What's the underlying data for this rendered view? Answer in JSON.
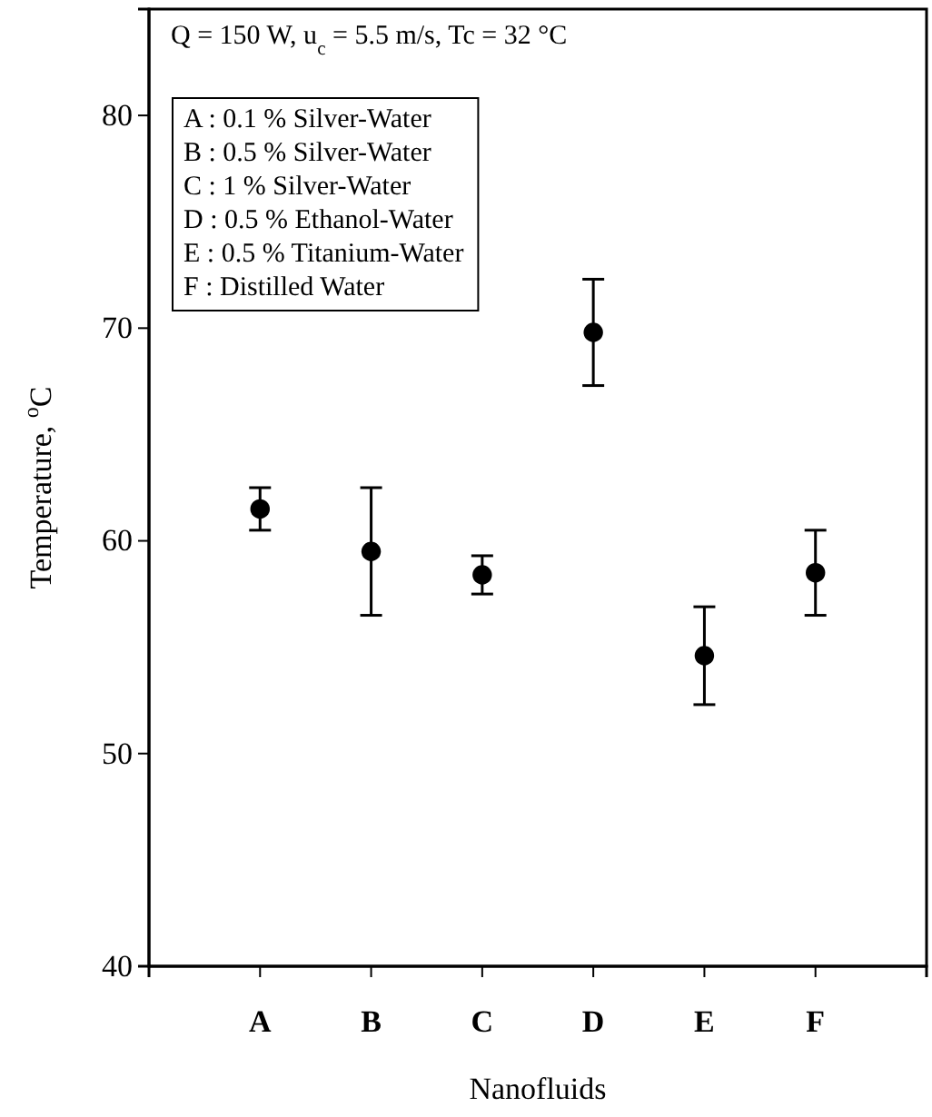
{
  "chart_data": {
    "type": "scatter",
    "categories": [
      "A",
      "B",
      "C",
      "D",
      "E",
      "F"
    ],
    "values": [
      61.5,
      59.5,
      58.4,
      69.8,
      54.6,
      58.5
    ],
    "errors": [
      1,
      3,
      0.9,
      2.5,
      2.3,
      2
    ],
    "color": "#000000",
    "marker": "circle",
    "xlabel": "Nanofluids",
    "ylabel": "Temperature, $^{o}$C",
    "ylim": [
      40,
      85
    ],
    "yticks": [
      40,
      50,
      60,
      70,
      80
    ],
    "grid": false,
    "annotations": [
      "Q = 150 W, u$_{c}$ = 5.5 m/s, Tc = 32 °C",
      "A : 0.1 % Silver-Water",
      "B : 0.5 % Silver-Water",
      "C : 1 % Silver-Water",
      "D : 0.5 % Ethanol-Water",
      "E : 0.5 % Titanium-Water",
      "F : Distilled Water"
    ]
  }
}
